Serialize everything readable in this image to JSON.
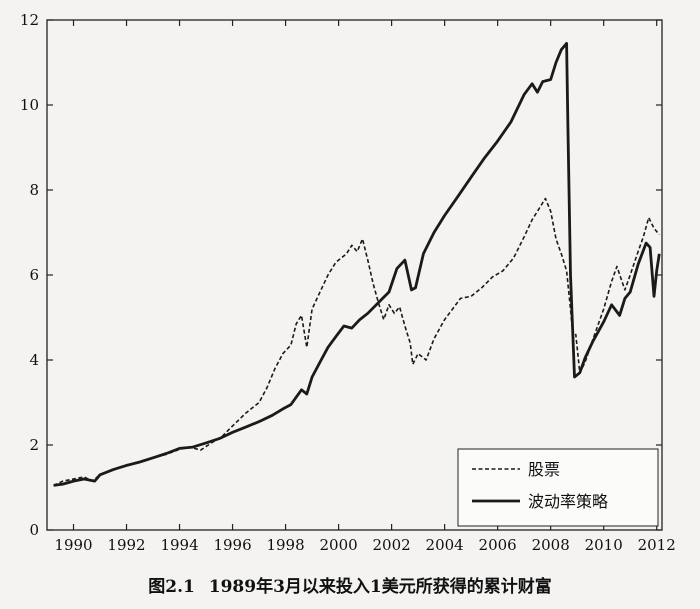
{
  "caption": {
    "label": "图2.1",
    "text": "1989年3月以来投入1美元所获得的累计财富"
  },
  "chart_data": {
    "type": "line",
    "title": "",
    "xlabel": "",
    "ylabel": "",
    "xlim": [
      1989.0,
      2012.2
    ],
    "ylim": [
      0,
      12
    ],
    "xticks": [
      1990,
      1992,
      1994,
      1996,
      1998,
      2000,
      2002,
      2004,
      2006,
      2008,
      2010,
      2012
    ],
    "yticks": [
      0,
      2,
      4,
      6,
      8,
      10,
      12
    ],
    "grid": false,
    "legend_position": "bottom-right",
    "series": [
      {
        "name": "股票",
        "style": "dashed",
        "x": [
          1989.25,
          1989.6,
          1990.0,
          1990.4,
          1990.7,
          1991.0,
          1991.5,
          1992.0,
          1992.5,
          1993.0,
          1993.5,
          1994.0,
          1994.4,
          1994.8,
          1995.2,
          1995.6,
          1996.0,
          1996.5,
          1997.0,
          1997.3,
          1997.6,
          1997.9,
          1998.2,
          1998.4,
          1998.6,
          1998.8,
          1999.0,
          1999.3,
          1999.6,
          1999.9,
          2000.1,
          2000.3,
          2000.5,
          2000.7,
          2000.9,
          2001.1,
          2001.3,
          2001.5,
          2001.7,
          2001.9,
          2002.1,
          2002.3,
          2002.5,
          2002.7,
          2002.8,
          2003.0,
          2003.3,
          2003.6,
          2004.0,
          2004.3,
          2004.6,
          2005.0,
          2005.4,
          2005.8,
          2006.2,
          2006.6,
          2007.0,
          2007.3,
          2007.6,
          2007.8,
          2008.0,
          2008.2,
          2008.4,
          2008.6,
          2008.75,
          2008.85,
          2008.95,
          2009.1,
          2009.3,
          2009.6,
          2010.0,
          2010.3,
          2010.5,
          2010.8,
          2011.0,
          2011.3,
          2011.5,
          2011.7,
          2011.9,
          2012.1
        ],
        "values": [
          1.05,
          1.15,
          1.2,
          1.25,
          1.15,
          1.3,
          1.42,
          1.52,
          1.6,
          1.7,
          1.78,
          1.9,
          1.95,
          1.88,
          2.05,
          2.2,
          2.45,
          2.75,
          3.0,
          3.35,
          3.8,
          4.15,
          4.35,
          4.85,
          5.05,
          4.3,
          5.2,
          5.6,
          6.0,
          6.3,
          6.4,
          6.5,
          6.7,
          6.55,
          6.85,
          6.35,
          5.8,
          5.35,
          4.95,
          5.3,
          5.1,
          5.25,
          4.8,
          4.4,
          3.9,
          4.15,
          4.0,
          4.5,
          4.95,
          5.2,
          5.45,
          5.5,
          5.7,
          5.95,
          6.1,
          6.4,
          6.9,
          7.3,
          7.6,
          7.8,
          7.5,
          6.85,
          6.5,
          6.1,
          5.2,
          4.5,
          4.6,
          3.7,
          3.95,
          4.5,
          5.2,
          5.85,
          6.2,
          5.65,
          6.0,
          6.55,
          6.9,
          7.35,
          7.1,
          6.95
        ]
      },
      {
        "name": "波动率策略",
        "style": "solid",
        "x": [
          1989.25,
          1989.6,
          1990.0,
          1990.4,
          1990.8,
          1991.0,
          1991.5,
          1992.0,
          1992.5,
          1993.0,
          1993.5,
          1994.0,
          1994.5,
          1995.0,
          1995.5,
          1996.0,
          1996.5,
          1997.0,
          1997.5,
          1997.9,
          1998.2,
          1998.6,
          1998.8,
          1999.0,
          1999.3,
          1999.6,
          1999.9,
          2000.2,
          2000.5,
          2000.8,
          2001.1,
          2001.5,
          2001.9,
          2002.2,
          2002.5,
          2002.75,
          2002.9,
          2003.2,
          2003.6,
          2004.0,
          2004.5,
          2005.0,
          2005.5,
          2006.0,
          2006.5,
          2007.0,
          2007.3,
          2007.5,
          2007.7,
          2008.0,
          2008.2,
          2008.4,
          2008.6,
          2008.65,
          2008.75,
          2008.9,
          2009.1,
          2009.3,
          2009.6,
          2010.0,
          2010.3,
          2010.6,
          2010.8,
          2011.0,
          2011.3,
          2011.6,
          2011.75,
          2011.9,
          2012.0,
          2012.1
        ],
        "values": [
          1.05,
          1.08,
          1.15,
          1.2,
          1.15,
          1.3,
          1.42,
          1.52,
          1.6,
          1.7,
          1.8,
          1.92,
          1.95,
          2.05,
          2.15,
          2.3,
          2.42,
          2.55,
          2.7,
          2.85,
          2.95,
          3.3,
          3.2,
          3.6,
          3.95,
          4.3,
          4.55,
          4.8,
          4.75,
          4.95,
          5.1,
          5.35,
          5.6,
          6.15,
          6.35,
          5.65,
          5.7,
          6.5,
          7.0,
          7.4,
          7.85,
          8.3,
          8.75,
          9.15,
          9.6,
          10.25,
          10.5,
          10.3,
          10.55,
          10.6,
          11.0,
          11.3,
          11.45,
          9.5,
          6.0,
          3.6,
          3.7,
          4.05,
          4.45,
          4.9,
          5.3,
          5.05,
          5.45,
          5.6,
          6.25,
          6.75,
          6.65,
          5.5,
          6.1,
          6.5
        ]
      }
    ]
  }
}
